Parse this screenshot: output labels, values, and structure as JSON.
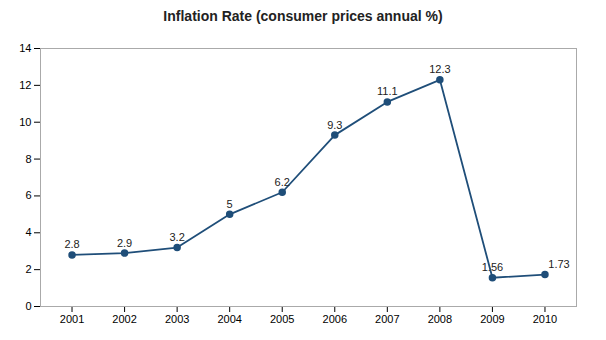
{
  "chart_data": {
    "type": "line",
    "title": "Inflation Rate (consumer prices annual %)",
    "x": [
      2001,
      2002,
      2003,
      2004,
      2005,
      2006,
      2007,
      2008,
      2009,
      2010
    ],
    "values": [
      2.8,
      2.9,
      3.2,
      5.0,
      6.2,
      9.3,
      11.1,
      12.3,
      1.56,
      1.73
    ],
    "color": "#1F4E79",
    "marker": "circle",
    "xlim": [
      2000.4,
      2010.6
    ],
    "xticks": [
      2001,
      2002,
      2003,
      2004,
      2005,
      2006,
      2007,
      2008,
      2009,
      2010
    ],
    "ylim": [
      0,
      14
    ],
    "yticks": [
      0,
      2,
      4,
      6,
      8,
      10,
      12,
      14
    ],
    "grid": false,
    "data_labels": true
  }
}
